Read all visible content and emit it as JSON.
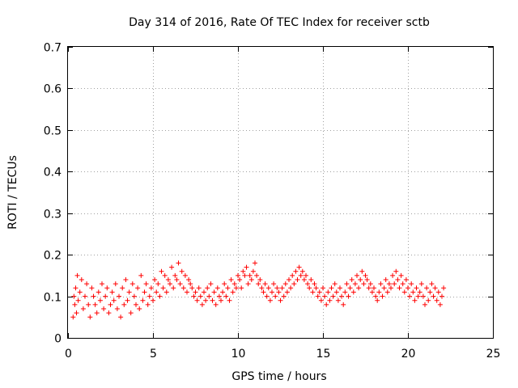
{
  "chart_data": {
    "type": "scatter",
    "title": "Day 314 of 2016, Rate Of TEC Index for receiver sctb",
    "xlabel": "GPS time / hours",
    "ylabel": "ROTI / TECUs",
    "xlim": [
      0,
      25
    ],
    "ylim": [
      0,
      0.7
    ],
    "xticks": [
      0,
      5,
      10,
      15,
      20,
      25
    ],
    "yticks": [
      0,
      0.1,
      0.2,
      0.3,
      0.4,
      0.5,
      0.6,
      0.7
    ],
    "xtick_labels": [
      "0",
      "5",
      "10",
      "15",
      "20",
      "25"
    ],
    "ytick_labels": [
      "0",
      "0.1",
      "0.2",
      "0.3",
      "0.4",
      "0.5",
      "0.6",
      "0.7"
    ],
    "grid": true,
    "marker": "+",
    "marker_color": "#ff0000",
    "series": [
      {
        "name": "ROTI",
        "x": [
          0.02,
          0.05,
          0.08,
          0.1,
          0.12,
          0.15,
          0.18,
          0.2,
          0.25,
          0.3,
          0.35,
          0.4,
          0.45,
          0.5,
          0.55,
          0.6,
          0.7,
          0.8,
          0.9,
          1.0,
          1.1,
          1.2,
          1.3,
          1.4,
          1.5,
          1.6,
          1.7,
          1.8,
          1.9,
          2.0,
          2.1,
          2.2,
          2.3,
          2.4,
          2.5,
          2.6,
          2.7,
          2.8,
          2.9,
          3.0,
          3.1,
          3.2,
          3.3,
          3.4,
          3.5,
          3.6,
          3.7,
          3.8,
          3.9,
          4.0,
          4.1,
          4.2,
          4.3,
          4.4,
          4.5,
          4.6,
          4.7,
          4.8,
          4.9,
          5.0,
          5.1,
          5.2,
          5.3,
          5.4,
          5.5,
          5.6,
          5.7,
          5.8,
          5.9,
          6.0,
          6.1,
          6.2,
          6.3,
          6.4,
          6.5,
          6.6,
          6.7,
          6.8,
          6.9,
          7.0,
          7.1,
          7.2,
          7.3,
          7.4,
          7.5,
          7.6,
          7.7,
          7.8,
          7.9,
          8.0,
          8.1,
          8.2,
          8.3,
          8.4,
          8.5,
          8.6,
          8.7,
          8.8,
          8.9,
          9.0,
          9.1,
          9.2,
          9.3,
          9.4,
          9.5,
          9.6,
          9.7,
          9.8,
          9.9,
          10.0,
          10.1,
          10.2,
          10.3,
          10.4,
          10.5,
          10.6,
          10.7,
          10.8,
          10.9,
          11.0,
          11.1,
          11.2,
          11.3,
          11.4,
          11.5,
          11.6,
          11.7,
          11.8,
          11.9,
          12.0,
          12.1,
          12.2,
          12.3,
          12.4,
          12.5,
          12.6,
          12.7,
          12.8,
          12.9,
          13.0,
          13.1,
          13.2,
          13.3,
          13.4,
          13.5,
          13.6,
          13.7,
          13.8,
          13.9,
          14.0,
          14.1,
          14.2,
          14.3,
          14.4,
          14.5,
          14.6,
          14.7,
          14.8,
          14.9,
          15.0,
          15.1,
          15.2,
          15.3,
          15.4,
          15.5,
          15.6,
          15.7,
          15.8,
          15.9,
          16.0,
          16.1,
          16.2,
          16.3,
          16.4,
          16.5,
          16.6,
          16.7,
          16.8,
          16.9,
          17.0,
          17.1,
          17.2,
          17.3,
          17.4,
          17.5,
          17.6,
          17.7,
          17.8,
          17.9,
          18.0,
          18.1,
          18.2,
          18.3,
          18.4,
          18.5,
          18.6,
          18.7,
          18.8,
          18.9,
          19.0,
          19.1,
          19.2,
          19.3,
          19.4,
          19.5,
          19.6,
          19.7,
          19.8,
          19.9,
          20.0,
          20.1,
          20.2,
          20.3,
          20.4,
          20.5,
          20.6,
          20.7,
          20.8,
          20.9,
          21.0,
          21.1,
          21.2,
          21.3,
          21.4,
          21.5,
          21.6,
          21.7,
          21.8,
          21.9,
          22.0,
          22.1,
          22.2,
          22.3,
          22.4,
          22.5,
          22.6,
          22.7,
          22.8,
          22.9,
          23.0,
          0.05,
          0.1,
          0.08,
          0.12,
          0.06,
          0.15,
          0.09,
          0.11,
          0.14,
          0.07,
          0.1,
          0.13,
          0.08,
          0.05,
          0.12,
          0.1,
          0.08,
          0.06,
          0.11,
          0.09,
          0.13,
          0.07,
          0.1,
          0.12,
          0.06,
          0.08,
          0.11,
          0.09,
          0.13,
          0.07,
          0.1,
          0.05,
          0.12,
          0.08,
          0.14,
          0.09,
          0.11,
          0.06,
          0.13,
          0.1,
          0.08,
          0.12,
          0.07,
          0.15,
          0.09,
          0.11,
          0.13,
          0.08,
          0.1,
          0.12,
          0.09,
          0.14,
          0.11,
          0.13,
          0.1,
          0.16,
          0.12,
          0.15,
          0.11,
          0.14,
          0.13,
          0.17,
          0.12,
          0.15,
          0.14,
          0.18,
          0.13,
          0.16,
          0.12,
          0.15,
          0.11,
          0.14,
          0.13,
          0.12,
          0.1,
          0.11,
          0.09,
          0.12,
          0.1,
          0.08,
          0.11,
          0.09,
          0.12,
          0.1,
          0.13,
          0.09,
          0.11,
          0.08,
          0.12,
          0.1,
          0.09,
          0.11,
          0.13,
          0.1,
          0.12,
          0.09,
          0.14,
          0.11,
          0.13,
          0.12,
          0.15,
          0.14,
          0.12,
          0.16,
          0.15,
          0.17,
          0.13,
          0.15,
          0.14,
          0.16,
          0.18,
          0.15,
          0.13,
          0.14,
          0.12,
          0.11,
          0.13,
          0.1,
          0.12,
          0.09,
          0.11,
          0.13,
          0.1,
          0.12,
          0.11,
          0.09,
          0.12,
          0.1,
          0.13,
          0.11,
          0.14,
          0.12,
          0.15,
          0.13,
          0.16,
          0.14,
          0.17,
          0.15,
          0.16,
          0.14,
          0.15,
          0.13,
          0.12,
          0.14,
          0.11,
          0.13,
          0.12,
          0.1,
          0.11,
          0.09,
          0.12,
          0.1,
          0.08,
          0.11,
          0.09,
          0.12,
          0.1,
          0.13,
          0.11,
          0.09,
          0.12,
          0.1,
          0.08,
          0.11,
          0.13,
          0.1,
          0.12,
          0.14,
          0.11,
          0.13,
          0.15,
          0.12,
          0.14,
          0.16,
          0.13,
          0.15,
          0.14,
          0.12,
          0.13,
          0.11,
          0.12,
          0.1,
          0.09,
          0.11,
          0.13,
          0.1,
          0.12,
          0.14,
          0.11,
          0.13,
          0.12,
          0.15,
          0.13,
          0.16,
          0.14,
          0.12,
          0.15,
          0.13,
          0.11,
          0.14,
          0.12,
          0.1,
          0.13,
          0.11,
          0.09,
          0.12,
          0.1,
          0.11,
          0.13,
          0.1,
          0.08,
          0.12,
          0.09,
          0.11,
          0.13,
          0.1,
          0.12,
          0.09,
          0.11,
          0.08,
          0.1,
          0.12,
          0.07
        ],
        "y": null
      }
    ]
  }
}
